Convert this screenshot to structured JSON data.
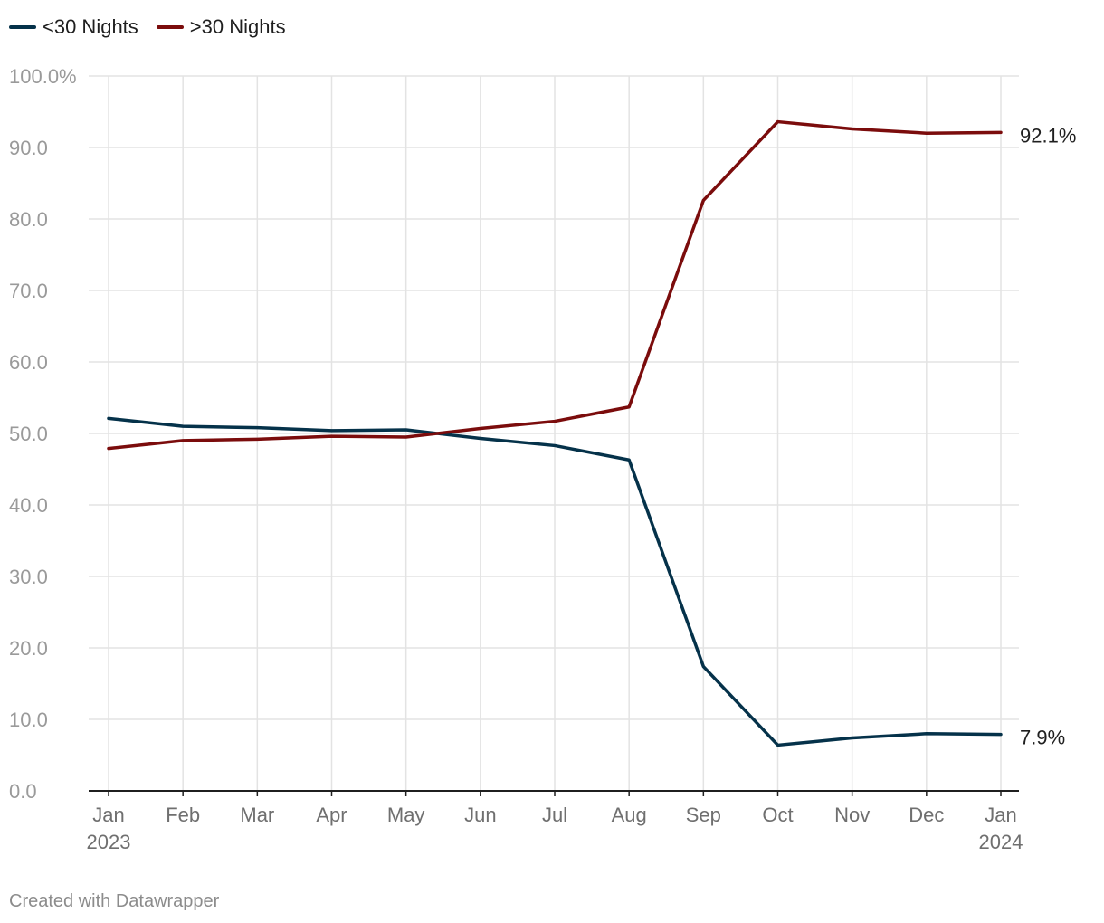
{
  "legend": {
    "items": [
      {
        "label": "<30 Nights",
        "color": "#05324a"
      },
      {
        "label": ">30 Nights",
        "color": "#7b0c0c"
      }
    ]
  },
  "chart_data": {
    "type": "line",
    "title": "",
    "xlabel": "",
    "ylabel": "",
    "categories": [
      "Jan 2023",
      "Feb",
      "Mar",
      "Apr",
      "May",
      "Jun",
      "Jul",
      "Aug",
      "Sep",
      "Oct",
      "Nov",
      "Dec",
      "Jan 2024"
    ],
    "x_tick_labels": [
      [
        "Jan",
        "2023"
      ],
      [
        "Feb"
      ],
      [
        "Mar"
      ],
      [
        "Apr"
      ],
      [
        "May"
      ],
      [
        "Jun"
      ],
      [
        "Jul"
      ],
      [
        "Aug"
      ],
      [
        "Sep"
      ],
      [
        "Oct"
      ],
      [
        "Nov"
      ],
      [
        "Dec"
      ],
      [
        "Jan",
        "2024"
      ]
    ],
    "y_ticks": [
      0,
      10,
      20,
      30,
      40,
      50,
      60,
      70,
      80,
      90,
      100
    ],
    "y_tick_labels": [
      "0.0",
      "10.0",
      "20.0",
      "30.0",
      "40.0",
      "50.0",
      "60.0",
      "70.0",
      "80.0",
      "90.0",
      "100.0%"
    ],
    "ylim": [
      0,
      100
    ],
    "grid": true,
    "series": [
      {
        "name": "<30 Nights",
        "color": "#05324a",
        "values": [
          52.1,
          51.0,
          50.8,
          50.4,
          50.5,
          49.3,
          48.3,
          46.3,
          17.4,
          6.4,
          7.4,
          8.0,
          7.9
        ],
        "end_label": "7.9%"
      },
      {
        "name": ">30 Nights",
        "color": "#7b0c0c",
        "values": [
          47.9,
          49.0,
          49.2,
          49.6,
          49.5,
          50.7,
          51.7,
          53.7,
          82.6,
          93.6,
          92.6,
          92.0,
          92.1
        ],
        "end_label": "92.1%"
      }
    ]
  },
  "footer": {
    "credit": "Created with Datawrapper"
  }
}
